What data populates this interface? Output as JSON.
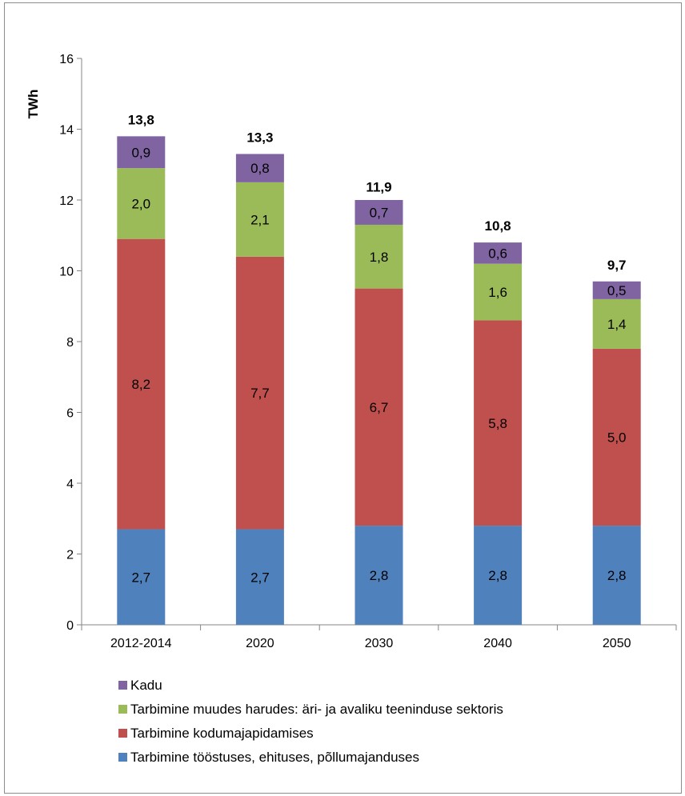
{
  "chart_data": {
    "type": "bar",
    "stacked": true,
    "title": "",
    "xlabel": "",
    "ylabel": "TWh",
    "ylim": [
      0,
      16
    ],
    "yticks": [
      "0",
      "2",
      "4",
      "6",
      "8",
      "10",
      "12",
      "14",
      "16"
    ],
    "categories": [
      "2012-2014",
      "2020",
      "2030",
      "2040",
      "2050"
    ],
    "series": [
      {
        "name": "Tarbimine tööstuses, ehituses, põllumajanduses",
        "color": "#4f81bd",
        "values": [
          2.7,
          2.7,
          2.8,
          2.8,
          2.8
        ],
        "labels": [
          "2,7",
          "2,7",
          "2,8",
          "2,8",
          "2,8"
        ]
      },
      {
        "name": "Tarbimine kodumajapidamises",
        "color": "#c0504d",
        "values": [
          8.2,
          7.7,
          6.7,
          5.8,
          5.0
        ],
        "labels": [
          "8,2",
          "7,7",
          "6,7",
          "5,8",
          "5,0"
        ]
      },
      {
        "name": "Tarbimine muudes harudes: äri- ja avaliku teeninduse sektoris",
        "color": "#9bbb59",
        "values": [
          2.0,
          2.1,
          1.8,
          1.6,
          1.4
        ],
        "labels": [
          "2,0",
          "2,1",
          "1,8",
          "1,6",
          "1,4"
        ]
      },
      {
        "name": "Kadu",
        "color": "#8064a2",
        "values": [
          0.9,
          0.8,
          0.7,
          0.6,
          0.5
        ],
        "labels": [
          "0,9",
          "0,8",
          "0,7",
          "0,6",
          "0,5"
        ]
      }
    ],
    "totals": [
      13.8,
      13.3,
      11.9,
      10.8,
      9.7
    ],
    "total_labels": [
      "13,8",
      "13,3",
      "11,9",
      "10,8",
      "9,7"
    ],
    "legend_position": "bottom-left",
    "grid": false
  }
}
